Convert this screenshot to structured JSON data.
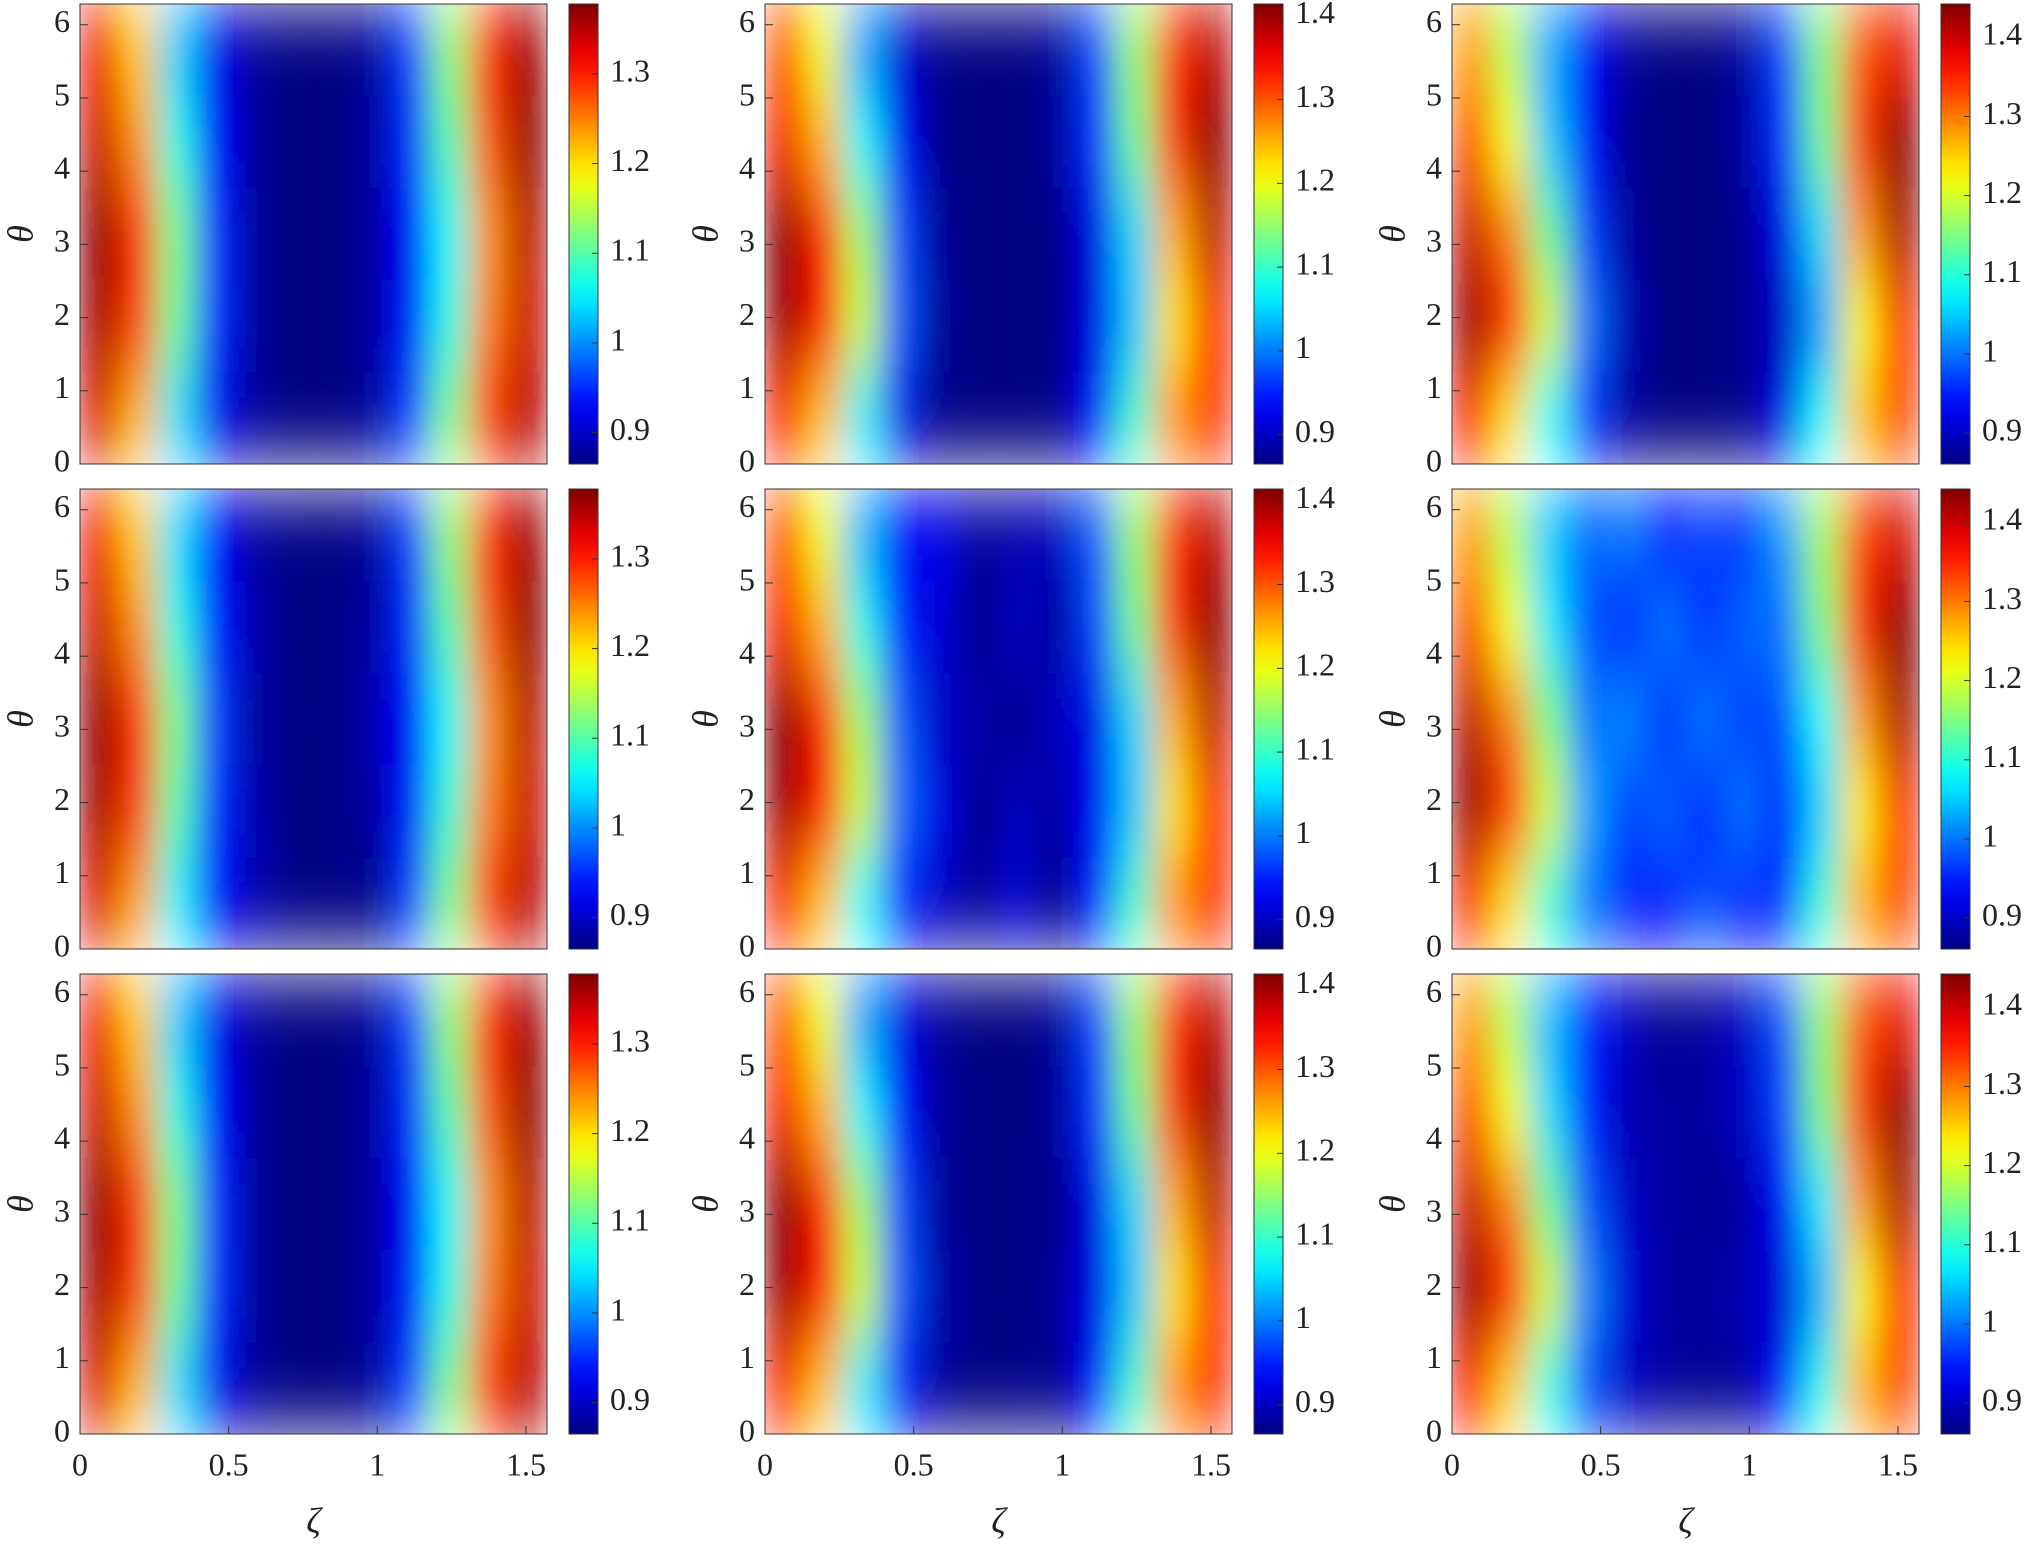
{
  "chart_data": [
    {
      "type": "heatmap",
      "ylabel": "θ",
      "colormap": "jet",
      "x": [
        0.065,
        0.196,
        0.327,
        0.458,
        0.589,
        0.72,
        0.851,
        0.982,
        1.113,
        1.244,
        1.375,
        1.505
      ],
      "y": [
        0.63,
        1.88,
        3.14,
        4.4,
        5.65
      ],
      "xlim": [
        0,
        1.5708
      ],
      "ylim": [
        0,
        6.2832
      ],
      "yticks": [
        0,
        1,
        2,
        3,
        4,
        5,
        6
      ],
      "clim": [
        0.865,
        1.378
      ],
      "cticks": [
        0.9,
        1,
        1.1,
        1.2,
        1.3
      ],
      "values": [
        [
          1.33,
          1.22,
          1.04,
          0.92,
          0.88,
          0.86,
          0.86,
          0.88,
          0.96,
          1.12,
          1.29,
          1.35
        ],
        [
          1.36,
          1.28,
          1.11,
          0.95,
          0.88,
          0.86,
          0.86,
          0.88,
          0.94,
          1.07,
          1.25,
          1.34
        ],
        [
          1.37,
          1.29,
          1.12,
          0.95,
          0.88,
          0.86,
          0.86,
          0.88,
          0.93,
          1.06,
          1.24,
          1.35
        ],
        [
          1.34,
          1.24,
          1.07,
          0.93,
          0.88,
          0.86,
          0.86,
          0.88,
          0.95,
          1.1,
          1.27,
          1.37
        ],
        [
          1.32,
          1.21,
          1.03,
          0.92,
          0.88,
          0.86,
          0.86,
          0.88,
          0.96,
          1.13,
          1.3,
          1.36
        ]
      ]
    },
    {
      "type": "heatmap",
      "ylabel": "θ",
      "colormap": "jet",
      "x": [
        0.065,
        0.196,
        0.327,
        0.458,
        0.589,
        0.72,
        0.851,
        0.982,
        1.113,
        1.244,
        1.375,
        1.505
      ],
      "y": [
        0.63,
        1.88,
        3.14,
        4.4,
        5.65
      ],
      "xlim": [
        0,
        1.5708
      ],
      "ylim": [
        0,
        6.2832
      ],
      "yticks": [
        0,
        1,
        2,
        3,
        4,
        5,
        6
      ],
      "clim": [
        0.865,
        1.414
      ],
      "cticks": [
        0.9,
        1,
        1.1,
        1.2,
        1.3,
        1.4
      ],
      "values": [
        [
          1.33,
          1.24,
          1.06,
          0.92,
          0.87,
          0.86,
          0.86,
          0.87,
          0.94,
          1.1,
          1.27,
          1.32
        ],
        [
          1.4,
          1.34,
          1.18,
          0.98,
          0.88,
          0.86,
          0.86,
          0.87,
          0.92,
          1.04,
          1.22,
          1.33
        ],
        [
          1.41,
          1.33,
          1.16,
          0.97,
          0.88,
          0.86,
          0.86,
          0.87,
          0.92,
          1.05,
          1.25,
          1.38
        ],
        [
          1.35,
          1.25,
          1.07,
          0.93,
          0.87,
          0.86,
          0.86,
          0.88,
          0.96,
          1.13,
          1.32,
          1.41
        ],
        [
          1.3,
          1.2,
          1.02,
          0.91,
          0.87,
          0.86,
          0.86,
          0.88,
          0.97,
          1.15,
          1.32,
          1.38
        ]
      ]
    },
    {
      "type": "heatmap",
      "ylabel": "θ",
      "colormap": "jet",
      "x": [
        0.065,
        0.196,
        0.327,
        0.458,
        0.589,
        0.72,
        0.851,
        0.982,
        1.113,
        1.244,
        1.375,
        1.505
      ],
      "y": [
        0.63,
        1.88,
        3.14,
        4.4,
        5.65
      ],
      "xlim": [
        0,
        1.5708
      ],
      "ylim": [
        0,
        6.2832
      ],
      "yticks": [
        0,
        1,
        2,
        3,
        4,
        5,
        6
      ],
      "clim": [
        0.861,
        1.442
      ],
      "cticks": [
        0.9,
        1,
        1.1,
        1.2,
        1.3,
        1.4
      ],
      "values": [
        [
          1.36,
          1.24,
          1.08,
          0.95,
          0.88,
          0.86,
          0.86,
          0.87,
          0.92,
          1.08,
          1.26,
          1.33
        ],
        [
          1.43,
          1.36,
          1.2,
          1.0,
          0.89,
          0.86,
          0.86,
          0.87,
          0.9,
          1.02,
          1.22,
          1.35
        ],
        [
          1.4,
          1.3,
          1.14,
          0.97,
          0.88,
          0.86,
          0.86,
          0.87,
          0.92,
          1.06,
          1.28,
          1.42
        ],
        [
          1.33,
          1.22,
          1.05,
          0.93,
          0.87,
          0.86,
          0.86,
          0.88,
          0.96,
          1.14,
          1.34,
          1.44
        ],
        [
          1.28,
          1.18,
          1.03,
          0.93,
          0.88,
          0.86,
          0.86,
          0.88,
          0.97,
          1.15,
          1.32,
          1.38
        ]
      ]
    },
    {
      "type": "heatmap",
      "ylabel": "θ",
      "colormap": "jet",
      "x": [
        0.065,
        0.196,
        0.327,
        0.458,
        0.589,
        0.72,
        0.851,
        0.982,
        1.113,
        1.244,
        1.375,
        1.505
      ],
      "y": [
        0.63,
        1.88,
        3.14,
        4.4,
        5.65
      ],
      "xlim": [
        0,
        1.5708
      ],
      "ylim": [
        0,
        6.2832
      ],
      "yticks": [
        0,
        1,
        2,
        3,
        4,
        5,
        6
      ],
      "clim": [
        0.865,
        1.378
      ],
      "cticks": [
        0.9,
        1,
        1.1,
        1.2,
        1.3
      ],
      "values": [
        [
          1.33,
          1.23,
          1.05,
          0.93,
          0.89,
          0.87,
          0.86,
          0.87,
          0.96,
          1.12,
          1.29,
          1.35
        ],
        [
          1.36,
          1.28,
          1.1,
          0.95,
          0.89,
          0.86,
          0.87,
          0.88,
          0.94,
          1.08,
          1.25,
          1.34
        ],
        [
          1.37,
          1.29,
          1.12,
          0.96,
          0.88,
          0.87,
          0.86,
          0.89,
          0.93,
          1.06,
          1.24,
          1.35
        ],
        [
          1.34,
          1.24,
          1.07,
          0.94,
          0.89,
          0.86,
          0.87,
          0.88,
          0.95,
          1.1,
          1.27,
          1.37
        ],
        [
          1.32,
          1.21,
          1.04,
          0.93,
          0.88,
          0.87,
          0.86,
          0.88,
          0.96,
          1.13,
          1.3,
          1.36
        ]
      ]
    },
    {
      "type": "heatmap",
      "ylabel": "θ",
      "colormap": "jet",
      "x": [
        0.065,
        0.196,
        0.327,
        0.458,
        0.589,
        0.72,
        0.851,
        0.982,
        1.113,
        1.244,
        1.375,
        1.505
      ],
      "y": [
        0.63,
        1.88,
        3.14,
        4.4,
        5.65
      ],
      "xlim": [
        0,
        1.5708
      ],
      "ylim": [
        0,
        6.2832
      ],
      "yticks": [
        0,
        1,
        2,
        3,
        4,
        5,
        6
      ],
      "clim": [
        0.865,
        1.414
      ],
      "cticks": [
        0.9,
        1,
        1.1,
        1.2,
        1.3,
        1.4
      ],
      "values": [
        [
          1.33,
          1.24,
          1.07,
          0.94,
          0.9,
          0.88,
          0.91,
          0.87,
          0.95,
          1.1,
          1.27,
          1.32
        ],
        [
          1.4,
          1.34,
          1.18,
          0.99,
          0.92,
          0.87,
          0.9,
          0.88,
          0.93,
          1.04,
          1.22,
          1.33
        ],
        [
          1.41,
          1.33,
          1.16,
          0.98,
          0.9,
          0.89,
          0.87,
          0.9,
          0.92,
          1.05,
          1.25,
          1.38
        ],
        [
          1.35,
          1.25,
          1.08,
          0.95,
          0.91,
          0.87,
          0.9,
          0.88,
          0.97,
          1.13,
          1.32,
          1.41
        ],
        [
          1.3,
          1.2,
          1.03,
          0.93,
          0.92,
          0.88,
          0.89,
          0.9,
          0.98,
          1.15,
          1.32,
          1.38
        ]
      ]
    },
    {
      "type": "heatmap",
      "ylabel": "θ",
      "colormap": "jet",
      "x": [
        0.065,
        0.196,
        0.327,
        0.458,
        0.589,
        0.72,
        0.851,
        0.982,
        1.113,
        1.244,
        1.375,
        1.505
      ],
      "y": [
        0.63,
        1.88,
        3.14,
        4.4,
        5.65
      ],
      "xlim": [
        0,
        1.5708
      ],
      "ylim": [
        0,
        6.2832
      ],
      "yticks": [
        0,
        1,
        2,
        3,
        4,
        5,
        6
      ],
      "clim": [
        0.861,
        1.442
      ],
      "cticks": [
        0.9,
        1,
        1.1,
        1.2,
        1.3,
        1.4
      ],
      "values": [
        [
          1.35,
          1.24,
          1.1,
          1.0,
          0.95,
          0.93,
          0.98,
          0.94,
          0.96,
          1.1,
          1.27,
          1.33
        ],
        [
          1.43,
          1.35,
          1.2,
          1.03,
          0.97,
          0.99,
          0.95,
          1.0,
          0.95,
          1.05,
          1.23,
          1.35
        ],
        [
          1.41,
          1.3,
          1.15,
          1.0,
          1.01,
          0.96,
          1.0,
          0.97,
          0.98,
          1.08,
          1.28,
          1.42
        ],
        [
          1.33,
          1.22,
          1.07,
          0.98,
          0.94,
          1.0,
          0.96,
          0.99,
          1.0,
          1.15,
          1.35,
          1.44
        ],
        [
          1.28,
          1.18,
          1.05,
          0.99,
          1.0,
          0.94,
          0.97,
          0.96,
          1.02,
          1.17,
          1.33,
          1.39
        ]
      ]
    },
    {
      "type": "heatmap",
      "xlabel": "ζ",
      "ylabel": "θ",
      "colormap": "jet",
      "x": [
        0.065,
        0.196,
        0.327,
        0.458,
        0.589,
        0.72,
        0.851,
        0.982,
        1.113,
        1.244,
        1.375,
        1.505
      ],
      "y": [
        0.63,
        1.88,
        3.14,
        4.4,
        5.65
      ],
      "xlim": [
        0,
        1.5708
      ],
      "ylim": [
        0,
        6.2832
      ],
      "xticks": [
        0,
        0.5,
        1,
        1.5
      ],
      "yticks": [
        0,
        1,
        2,
        3,
        4,
        5,
        6
      ],
      "clim": [
        0.865,
        1.378
      ],
      "cticks": [
        0.9,
        1,
        1.1,
        1.2,
        1.3
      ],
      "values": [
        [
          1.33,
          1.22,
          1.04,
          0.92,
          0.88,
          0.86,
          0.86,
          0.88,
          0.96,
          1.12,
          1.29,
          1.35
        ],
        [
          1.36,
          1.28,
          1.11,
          0.95,
          0.88,
          0.86,
          0.86,
          0.88,
          0.94,
          1.07,
          1.25,
          1.34
        ],
        [
          1.37,
          1.29,
          1.12,
          0.95,
          0.88,
          0.86,
          0.86,
          0.88,
          0.93,
          1.06,
          1.24,
          1.35
        ],
        [
          1.34,
          1.24,
          1.07,
          0.93,
          0.88,
          0.86,
          0.86,
          0.88,
          0.95,
          1.1,
          1.27,
          1.37
        ],
        [
          1.32,
          1.21,
          1.03,
          0.92,
          0.88,
          0.86,
          0.86,
          0.88,
          0.96,
          1.13,
          1.3,
          1.36
        ]
      ]
    },
    {
      "type": "heatmap",
      "xlabel": "ζ",
      "ylabel": "θ",
      "colormap": "jet",
      "x": [
        0.065,
        0.196,
        0.327,
        0.458,
        0.589,
        0.72,
        0.851,
        0.982,
        1.113,
        1.244,
        1.375,
        1.505
      ],
      "y": [
        0.63,
        1.88,
        3.14,
        4.4,
        5.65
      ],
      "xlim": [
        0,
        1.5708
      ],
      "ylim": [
        0,
        6.2832
      ],
      "xticks": [
        0,
        0.5,
        1,
        1.5
      ],
      "yticks": [
        0,
        1,
        2,
        3,
        4,
        5,
        6
      ],
      "clim": [
        0.865,
        1.414
      ],
      "cticks": [
        0.9,
        1,
        1.1,
        1.2,
        1.3,
        1.4
      ],
      "values": [
        [
          1.33,
          1.24,
          1.06,
          0.93,
          0.88,
          0.86,
          0.87,
          0.87,
          0.94,
          1.1,
          1.27,
          1.32
        ],
        [
          1.4,
          1.34,
          1.18,
          0.98,
          0.89,
          0.87,
          0.86,
          0.88,
          0.92,
          1.04,
          1.22,
          1.33
        ],
        [
          1.41,
          1.33,
          1.16,
          0.97,
          0.88,
          0.86,
          0.87,
          0.87,
          0.92,
          1.05,
          1.25,
          1.38
        ],
        [
          1.35,
          1.25,
          1.07,
          0.94,
          0.88,
          0.87,
          0.86,
          0.88,
          0.96,
          1.13,
          1.32,
          1.41
        ],
        [
          1.3,
          1.2,
          1.02,
          0.92,
          0.88,
          0.86,
          0.86,
          0.88,
          0.97,
          1.15,
          1.32,
          1.38
        ]
      ]
    },
    {
      "type": "heatmap",
      "xlabel": "ζ",
      "ylabel": "θ",
      "colormap": "jet",
      "x": [
        0.065,
        0.196,
        0.327,
        0.458,
        0.589,
        0.72,
        0.851,
        0.982,
        1.113,
        1.244,
        1.375,
        1.505
      ],
      "y": [
        0.63,
        1.88,
        3.14,
        4.4,
        5.65
      ],
      "xlim": [
        0,
        1.5708
      ],
      "ylim": [
        0,
        6.2832
      ],
      "xticks": [
        0,
        0.5,
        1,
        1.5
      ],
      "yticks": [
        0,
        1,
        2,
        3,
        4,
        5,
        6
      ],
      "clim": [
        0.861,
        1.442
      ],
      "cticks": [
        0.9,
        1,
        1.1,
        1.2,
        1.3,
        1.4
      ],
      "values": [
        [
          1.36,
          1.25,
          1.09,
          0.97,
          0.9,
          0.88,
          0.87,
          0.88,
          0.94,
          1.09,
          1.27,
          1.33
        ],
        [
          1.43,
          1.36,
          1.2,
          1.01,
          0.91,
          0.88,
          0.88,
          0.89,
          0.91,
          1.03,
          1.22,
          1.35
        ],
        [
          1.4,
          1.3,
          1.14,
          0.98,
          0.9,
          0.88,
          0.87,
          0.88,
          0.93,
          1.07,
          1.28,
          1.42
        ],
        [
          1.33,
          1.22,
          1.06,
          0.95,
          0.89,
          0.88,
          0.88,
          0.9,
          0.97,
          1.15,
          1.34,
          1.44
        ],
        [
          1.28,
          1.18,
          1.04,
          0.95,
          0.9,
          0.87,
          0.88,
          0.9,
          0.98,
          1.16,
          1.32,
          1.38
        ]
      ]
    }
  ]
}
